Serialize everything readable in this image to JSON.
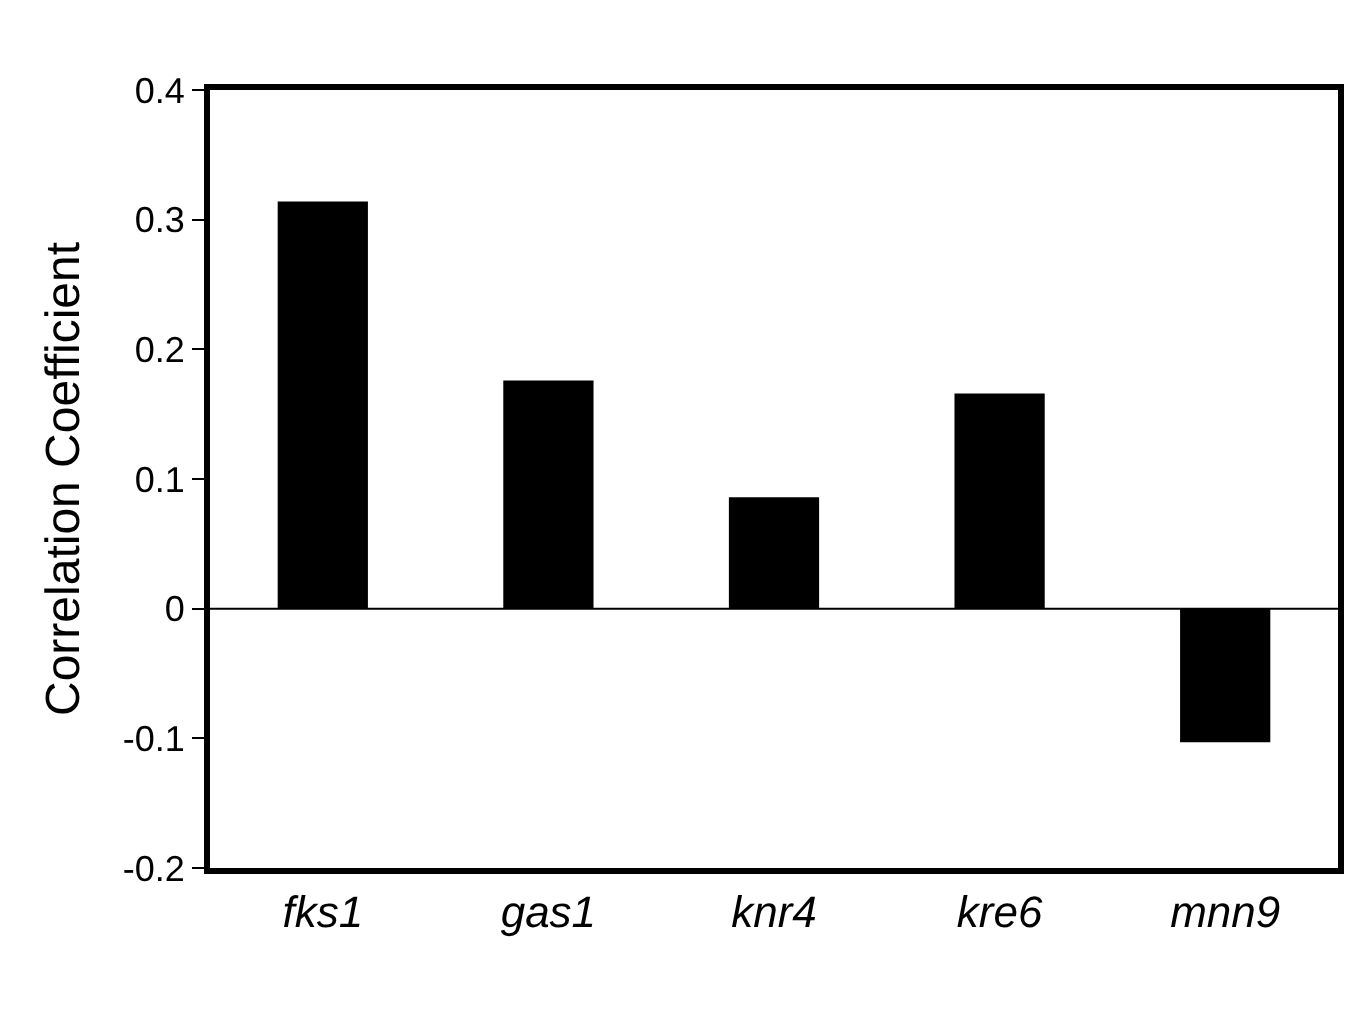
{
  "chart_data": {
    "type": "bar",
    "ylabel": "Correlation Coefficient",
    "categories": [
      "fks1",
      "gas1",
      "knr4",
      "kre6",
      "mnn9"
    ],
    "values": [
      0.314,
      0.176,
      0.086,
      0.166,
      -0.103
    ],
    "color": "#000000",
    "ylim": [
      -0.2,
      0.4
    ],
    "yticks": [
      {
        "value": -0.2,
        "label": "-0.2"
      },
      {
        "value": -0.1,
        "label": "-0.1"
      },
      0,
      0.1,
      0.2,
      0.3,
      0.4
    ],
    "ref_lines": [
      {
        "axis": "y",
        "value": 0,
        "color": "#000000"
      }
    ],
    "legend": false
  }
}
